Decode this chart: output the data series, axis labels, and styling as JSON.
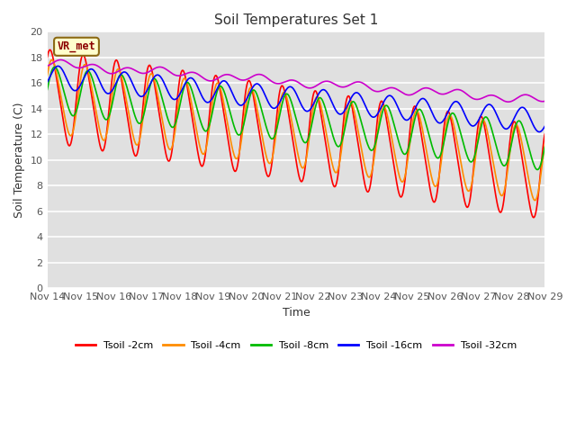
{
  "title": "Soil Temperatures Set 1",
  "xlabel": "Time",
  "ylabel": "Soil Temperature (C)",
  "ylim": [
    0,
    20
  ],
  "yticks": [
    0,
    2,
    4,
    6,
    8,
    10,
    12,
    14,
    16,
    18,
    20
  ],
  "x_tick_labels": [
    "Nov 14",
    "Nov 15",
    "Nov 16",
    "Nov 17",
    "Nov 18",
    "Nov 19",
    "Nov 20",
    "Nov 21",
    "Nov 22",
    "Nov 23",
    "Nov 24",
    "Nov 25",
    "Nov 26",
    "Nov 27",
    "Nov 28",
    "Nov 29"
  ],
  "bg_color": "#e0e0e0",
  "fig_color": "#ffffff",
  "annotation_text": "VR_met",
  "annotation_bg": "#ffffcc",
  "annotation_edge": "#8b6914",
  "annotation_text_color": "#8b0000",
  "series": {
    "Tsoil -2cm": {
      "color": "#ff0000",
      "lw": 1.2
    },
    "Tsoil -4cm": {
      "color": "#ff8c00",
      "lw": 1.2
    },
    "Tsoil -8cm": {
      "color": "#00bb00",
      "lw": 1.2
    },
    "Tsoil -16cm": {
      "color": "#0000ff",
      "lw": 1.2
    },
    "Tsoil -32cm": {
      "color": "#cc00cc",
      "lw": 1.2
    }
  },
  "n_points": 720
}
